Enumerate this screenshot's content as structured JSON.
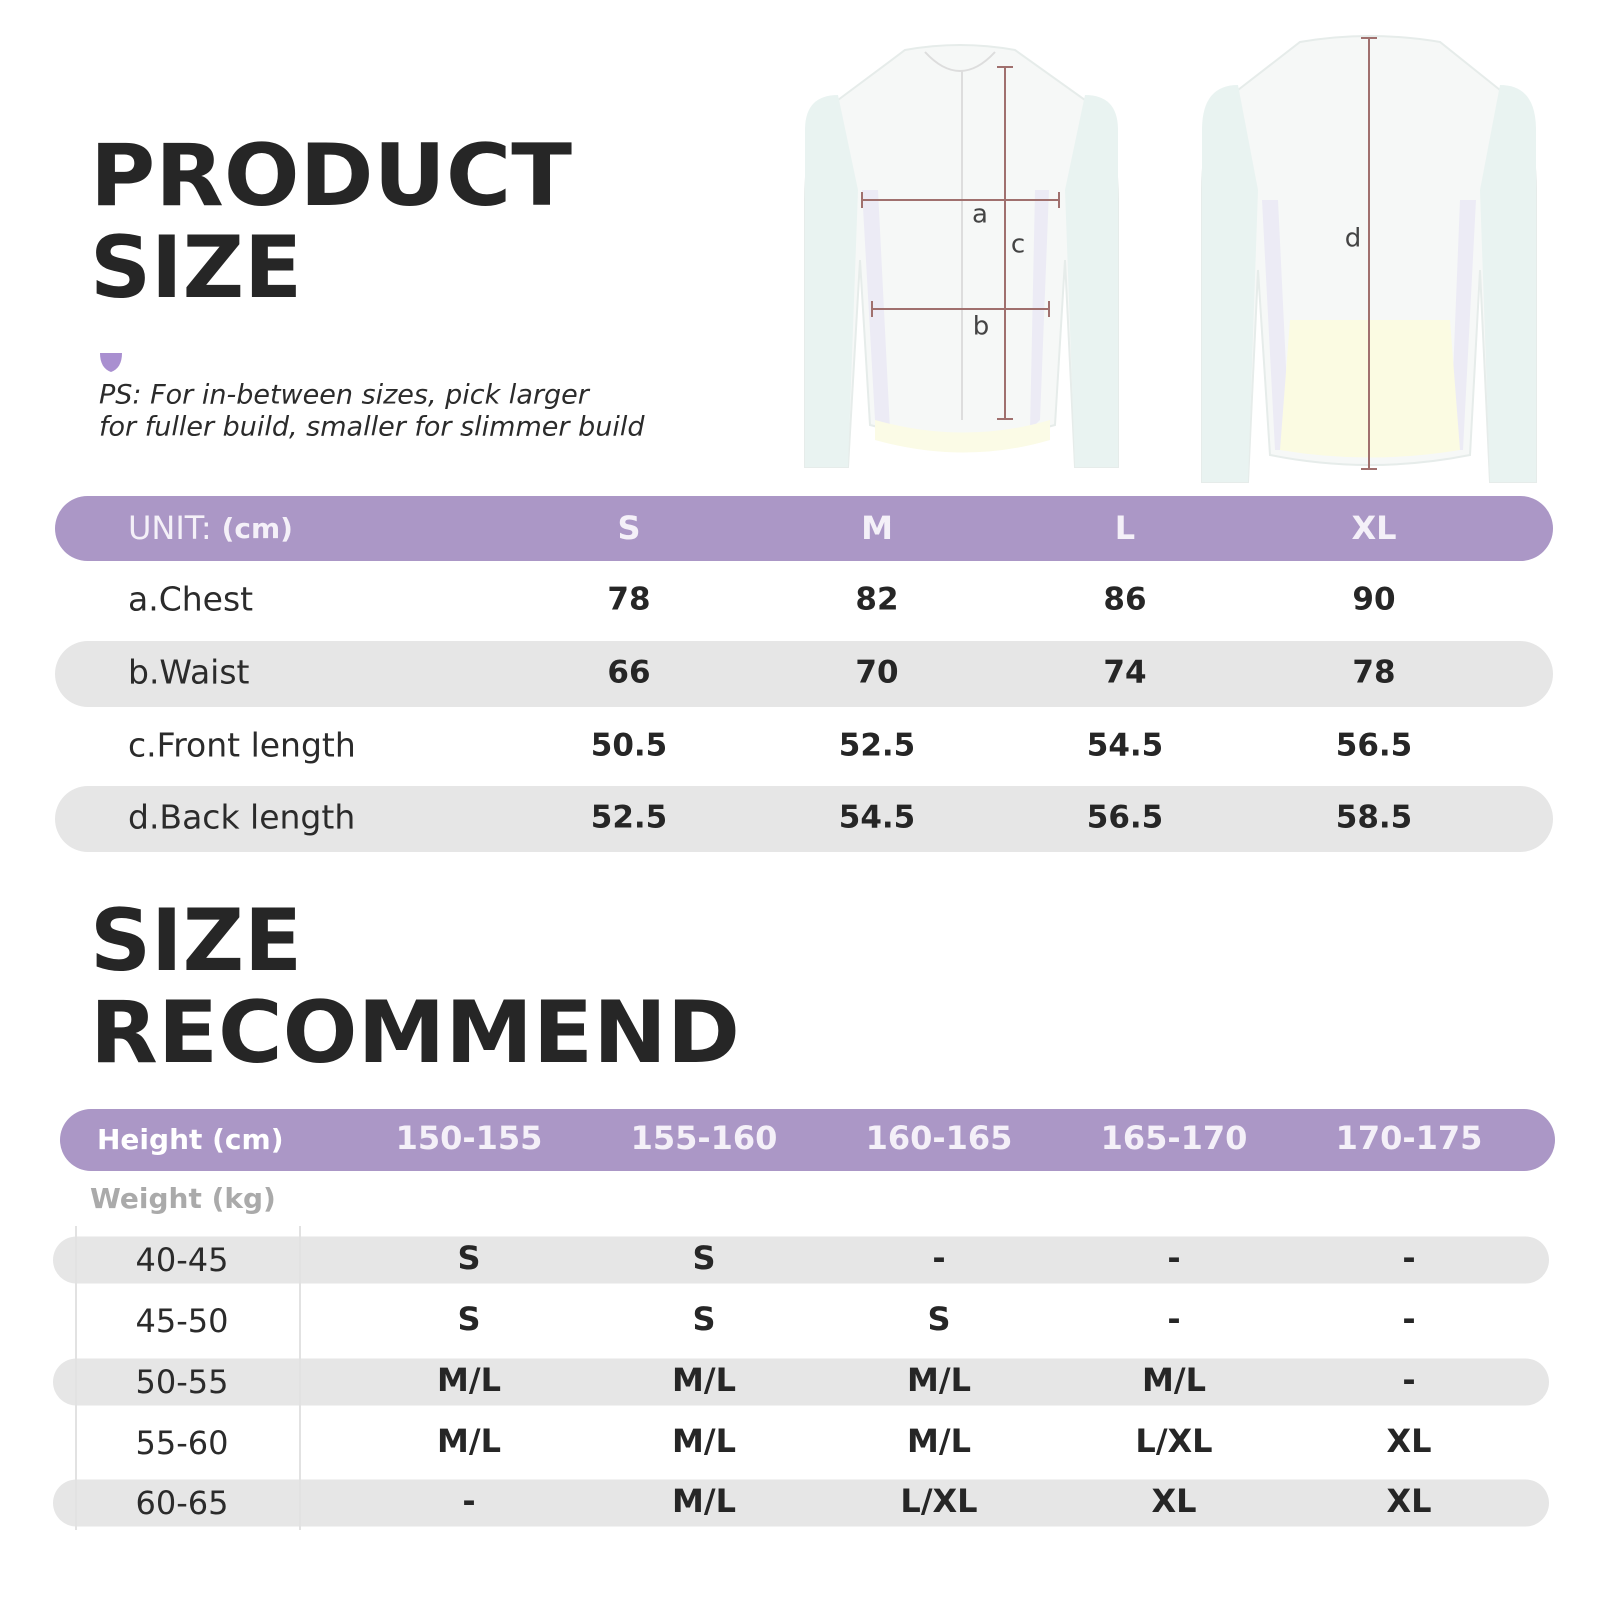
{
  "product_size": {
    "title": [
      "PRODUCT",
      "SIZE"
    ],
    "note": [
      "PS: For in-between sizes, pick larger",
      "for fuller build, smaller for slimmer build"
    ],
    "diagram": {
      "labels": [
        "a",
        "b",
        "c",
        "d"
      ]
    }
  },
  "size_table": {
    "unit_label": "UNIT:",
    "unit": "(cm)",
    "columns": [
      "S",
      "M",
      "L",
      "XL"
    ],
    "rows": [
      {
        "label": "a.Chest",
        "values": [
          78,
          82,
          86,
          90
        ]
      },
      {
        "label": "b.Waist",
        "values": [
          66,
          70,
          74,
          78
        ]
      },
      {
        "label": "c.Front length",
        "values": [
          50.5,
          52.5,
          54.5,
          56.5
        ]
      },
      {
        "label": "d.Back length",
        "values": [
          52.5,
          54.5,
          56.5,
          58.5
        ]
      }
    ]
  },
  "recommend": {
    "title": [
      "SIZE",
      "RECOMMEND"
    ],
    "height_label": "Height (cm)",
    "heights": [
      "150-155",
      "155-160",
      "160-165",
      "165-170",
      "170-175"
    ],
    "weight_label": "Weight (kg)",
    "rows": [
      {
        "weight": "40-45",
        "sizes": [
          "S",
          "S",
          "-",
          "-",
          "-"
        ]
      },
      {
        "weight": "45-50",
        "sizes": [
          "S",
          "S",
          "S",
          "-",
          "-"
        ]
      },
      {
        "weight": "50-55",
        "sizes": [
          "M/L",
          "M/L",
          "M/L",
          "M/L",
          "-"
        ]
      },
      {
        "weight": "55-60",
        "sizes": [
          "M/L",
          "M/L",
          "M/L",
          "L/XL",
          "XL"
        ]
      },
      {
        "weight": "60-65",
        "sizes": [
          "-",
          "M/L",
          "L/XL",
          "XL",
          "XL"
        ]
      }
    ]
  }
}
